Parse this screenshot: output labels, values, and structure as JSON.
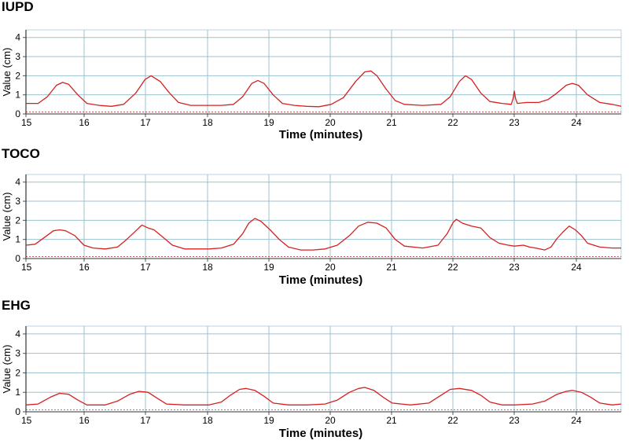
{
  "chart_data": [
    {
      "type": "line",
      "title": "IUPD",
      "xlabel": "Time (minutes)",
      "ylabel": "Value (cm)",
      "xlim": [
        15,
        24.75
      ],
      "ylim": [
        0,
        4.4
      ],
      "xticks": [
        "15",
        "16",
        "17",
        "18",
        "19",
        "20",
        "21",
        "22",
        "23",
        "24"
      ],
      "yticks": [
        "0",
        "1",
        "2",
        "3",
        "4"
      ],
      "grid": true,
      "baseline": 0.1,
      "series": [
        {
          "name": "IUPD",
          "color": "#d62020",
          "x": [
            15.0,
            15.2,
            15.35,
            15.5,
            15.6,
            15.7,
            15.85,
            16.0,
            16.2,
            16.4,
            16.6,
            16.8,
            16.95,
            17.05,
            17.2,
            17.35,
            17.5,
            17.7,
            18.0,
            18.2,
            18.4,
            18.55,
            18.7,
            18.8,
            18.9,
            19.05,
            19.2,
            19.4,
            19.6,
            19.8,
            20.0,
            20.2,
            20.4,
            20.55,
            20.65,
            20.75,
            20.9,
            21.05,
            21.2,
            21.5,
            21.8,
            21.95,
            22.1,
            22.2,
            22.3,
            22.45,
            22.6,
            22.8,
            22.95,
            22.98,
            23.0,
            23.02,
            23.05,
            23.2,
            23.4,
            23.55,
            23.7,
            23.85,
            23.95,
            24.05,
            24.2,
            24.4,
            24.6,
            24.75
          ],
          "values": [
            0.55,
            0.55,
            0.9,
            1.5,
            1.65,
            1.55,
            1.0,
            0.55,
            0.45,
            0.4,
            0.5,
            1.1,
            1.8,
            2.0,
            1.7,
            1.1,
            0.6,
            0.45,
            0.45,
            0.45,
            0.5,
            0.9,
            1.6,
            1.75,
            1.6,
            1.0,
            0.55,
            0.45,
            0.4,
            0.38,
            0.5,
            0.85,
            1.7,
            2.2,
            2.25,
            2.0,
            1.3,
            0.7,
            0.5,
            0.45,
            0.5,
            0.9,
            1.7,
            2.0,
            1.8,
            1.1,
            0.65,
            0.55,
            0.5,
            0.8,
            1.2,
            0.8,
            0.55,
            0.6,
            0.6,
            0.75,
            1.1,
            1.5,
            1.6,
            1.5,
            1.0,
            0.6,
            0.5,
            0.4
          ]
        }
      ]
    },
    {
      "type": "line",
      "title": "TOCO",
      "xlabel": "Time (minutes)",
      "ylabel": "Value (cm)",
      "xlim": [
        15,
        24.75
      ],
      "ylim": [
        0,
        4.4
      ],
      "xticks": [
        "15",
        "16",
        "17",
        "18",
        "19",
        "20",
        "21",
        "22",
        "23",
        "24"
      ],
      "yticks": [
        "0",
        "1",
        "2",
        "3",
        "4"
      ],
      "grid": true,
      "baseline": 0.1,
      "series": [
        {
          "name": "TOCO",
          "color": "#d62020",
          "x": [
            15.0,
            15.15,
            15.3,
            15.45,
            15.55,
            15.65,
            15.8,
            15.95,
            16.1,
            16.3,
            16.5,
            16.65,
            16.8,
            16.9,
            17.0,
            17.1,
            17.25,
            17.4,
            17.6,
            17.8,
            18.0,
            18.2,
            18.4,
            18.55,
            18.65,
            18.75,
            18.85,
            19.0,
            19.15,
            19.3,
            19.5,
            19.7,
            19.9,
            20.1,
            20.3,
            20.45,
            20.6,
            20.75,
            20.9,
            21.05,
            21.2,
            21.5,
            21.75,
            21.9,
            22.0,
            22.05,
            22.15,
            22.3,
            22.45,
            22.6,
            22.75,
            22.9,
            23.0,
            23.15,
            23.25,
            23.35,
            23.5,
            23.6,
            23.7,
            23.8,
            23.9,
            24.0,
            24.1,
            24.2,
            24.4,
            24.6,
            24.75
          ],
          "values": [
            0.7,
            0.75,
            1.1,
            1.45,
            1.5,
            1.45,
            1.2,
            0.7,
            0.55,
            0.5,
            0.6,
            1.0,
            1.45,
            1.75,
            1.6,
            1.5,
            1.1,
            0.7,
            0.5,
            0.5,
            0.5,
            0.55,
            0.75,
            1.3,
            1.85,
            2.1,
            1.95,
            1.5,
            1.0,
            0.6,
            0.45,
            0.45,
            0.5,
            0.7,
            1.2,
            1.7,
            1.9,
            1.85,
            1.6,
            1.0,
            0.65,
            0.55,
            0.7,
            1.3,
            1.9,
            2.05,
            1.85,
            1.7,
            1.6,
            1.1,
            0.8,
            0.7,
            0.65,
            0.7,
            0.6,
            0.55,
            0.45,
            0.6,
            1.05,
            1.4,
            1.7,
            1.5,
            1.2,
            0.8,
            0.6,
            0.55,
            0.55
          ]
        }
      ]
    },
    {
      "type": "line",
      "title": "EHG",
      "xlabel": "Time (minutes)",
      "ylabel": "Value (cm)",
      "xlim": [
        15,
        24.75
      ],
      "ylim": [
        0,
        4.4
      ],
      "xticks": [
        "15",
        "16",
        "17",
        "18",
        "19",
        "20",
        "21",
        "22",
        "23",
        "24"
      ],
      "yticks": [
        "0",
        "1",
        "2",
        "3",
        "4"
      ],
      "grid": true,
      "baseline": 0.1,
      "series": [
        {
          "name": "EHG",
          "color": "#d62020",
          "x": [
            15.0,
            15.2,
            15.4,
            15.55,
            15.7,
            15.85,
            16.0,
            16.3,
            16.5,
            16.7,
            16.85,
            17.0,
            17.15,
            17.3,
            17.6,
            18.0,
            18.2,
            18.35,
            18.5,
            18.6,
            18.75,
            18.9,
            19.05,
            19.3,
            19.6,
            19.9,
            20.1,
            20.3,
            20.45,
            20.55,
            20.7,
            20.85,
            21.0,
            21.3,
            21.6,
            21.8,
            21.95,
            22.1,
            22.3,
            22.45,
            22.6,
            22.8,
            23.0,
            23.3,
            23.5,
            23.7,
            23.85,
            23.95,
            24.1,
            24.25,
            24.4,
            24.6,
            24.75
          ],
          "values": [
            0.35,
            0.4,
            0.75,
            0.95,
            0.9,
            0.6,
            0.35,
            0.35,
            0.55,
            0.9,
            1.05,
            1.0,
            0.7,
            0.4,
            0.35,
            0.35,
            0.5,
            0.85,
            1.15,
            1.2,
            1.1,
            0.8,
            0.45,
            0.35,
            0.35,
            0.4,
            0.6,
            1.0,
            1.2,
            1.25,
            1.1,
            0.75,
            0.45,
            0.35,
            0.45,
            0.85,
            1.15,
            1.2,
            1.1,
            0.85,
            0.5,
            0.35,
            0.35,
            0.4,
            0.55,
            0.9,
            1.05,
            1.1,
            1.0,
            0.75,
            0.45,
            0.35,
            0.4
          ]
        }
      ]
    }
  ]
}
